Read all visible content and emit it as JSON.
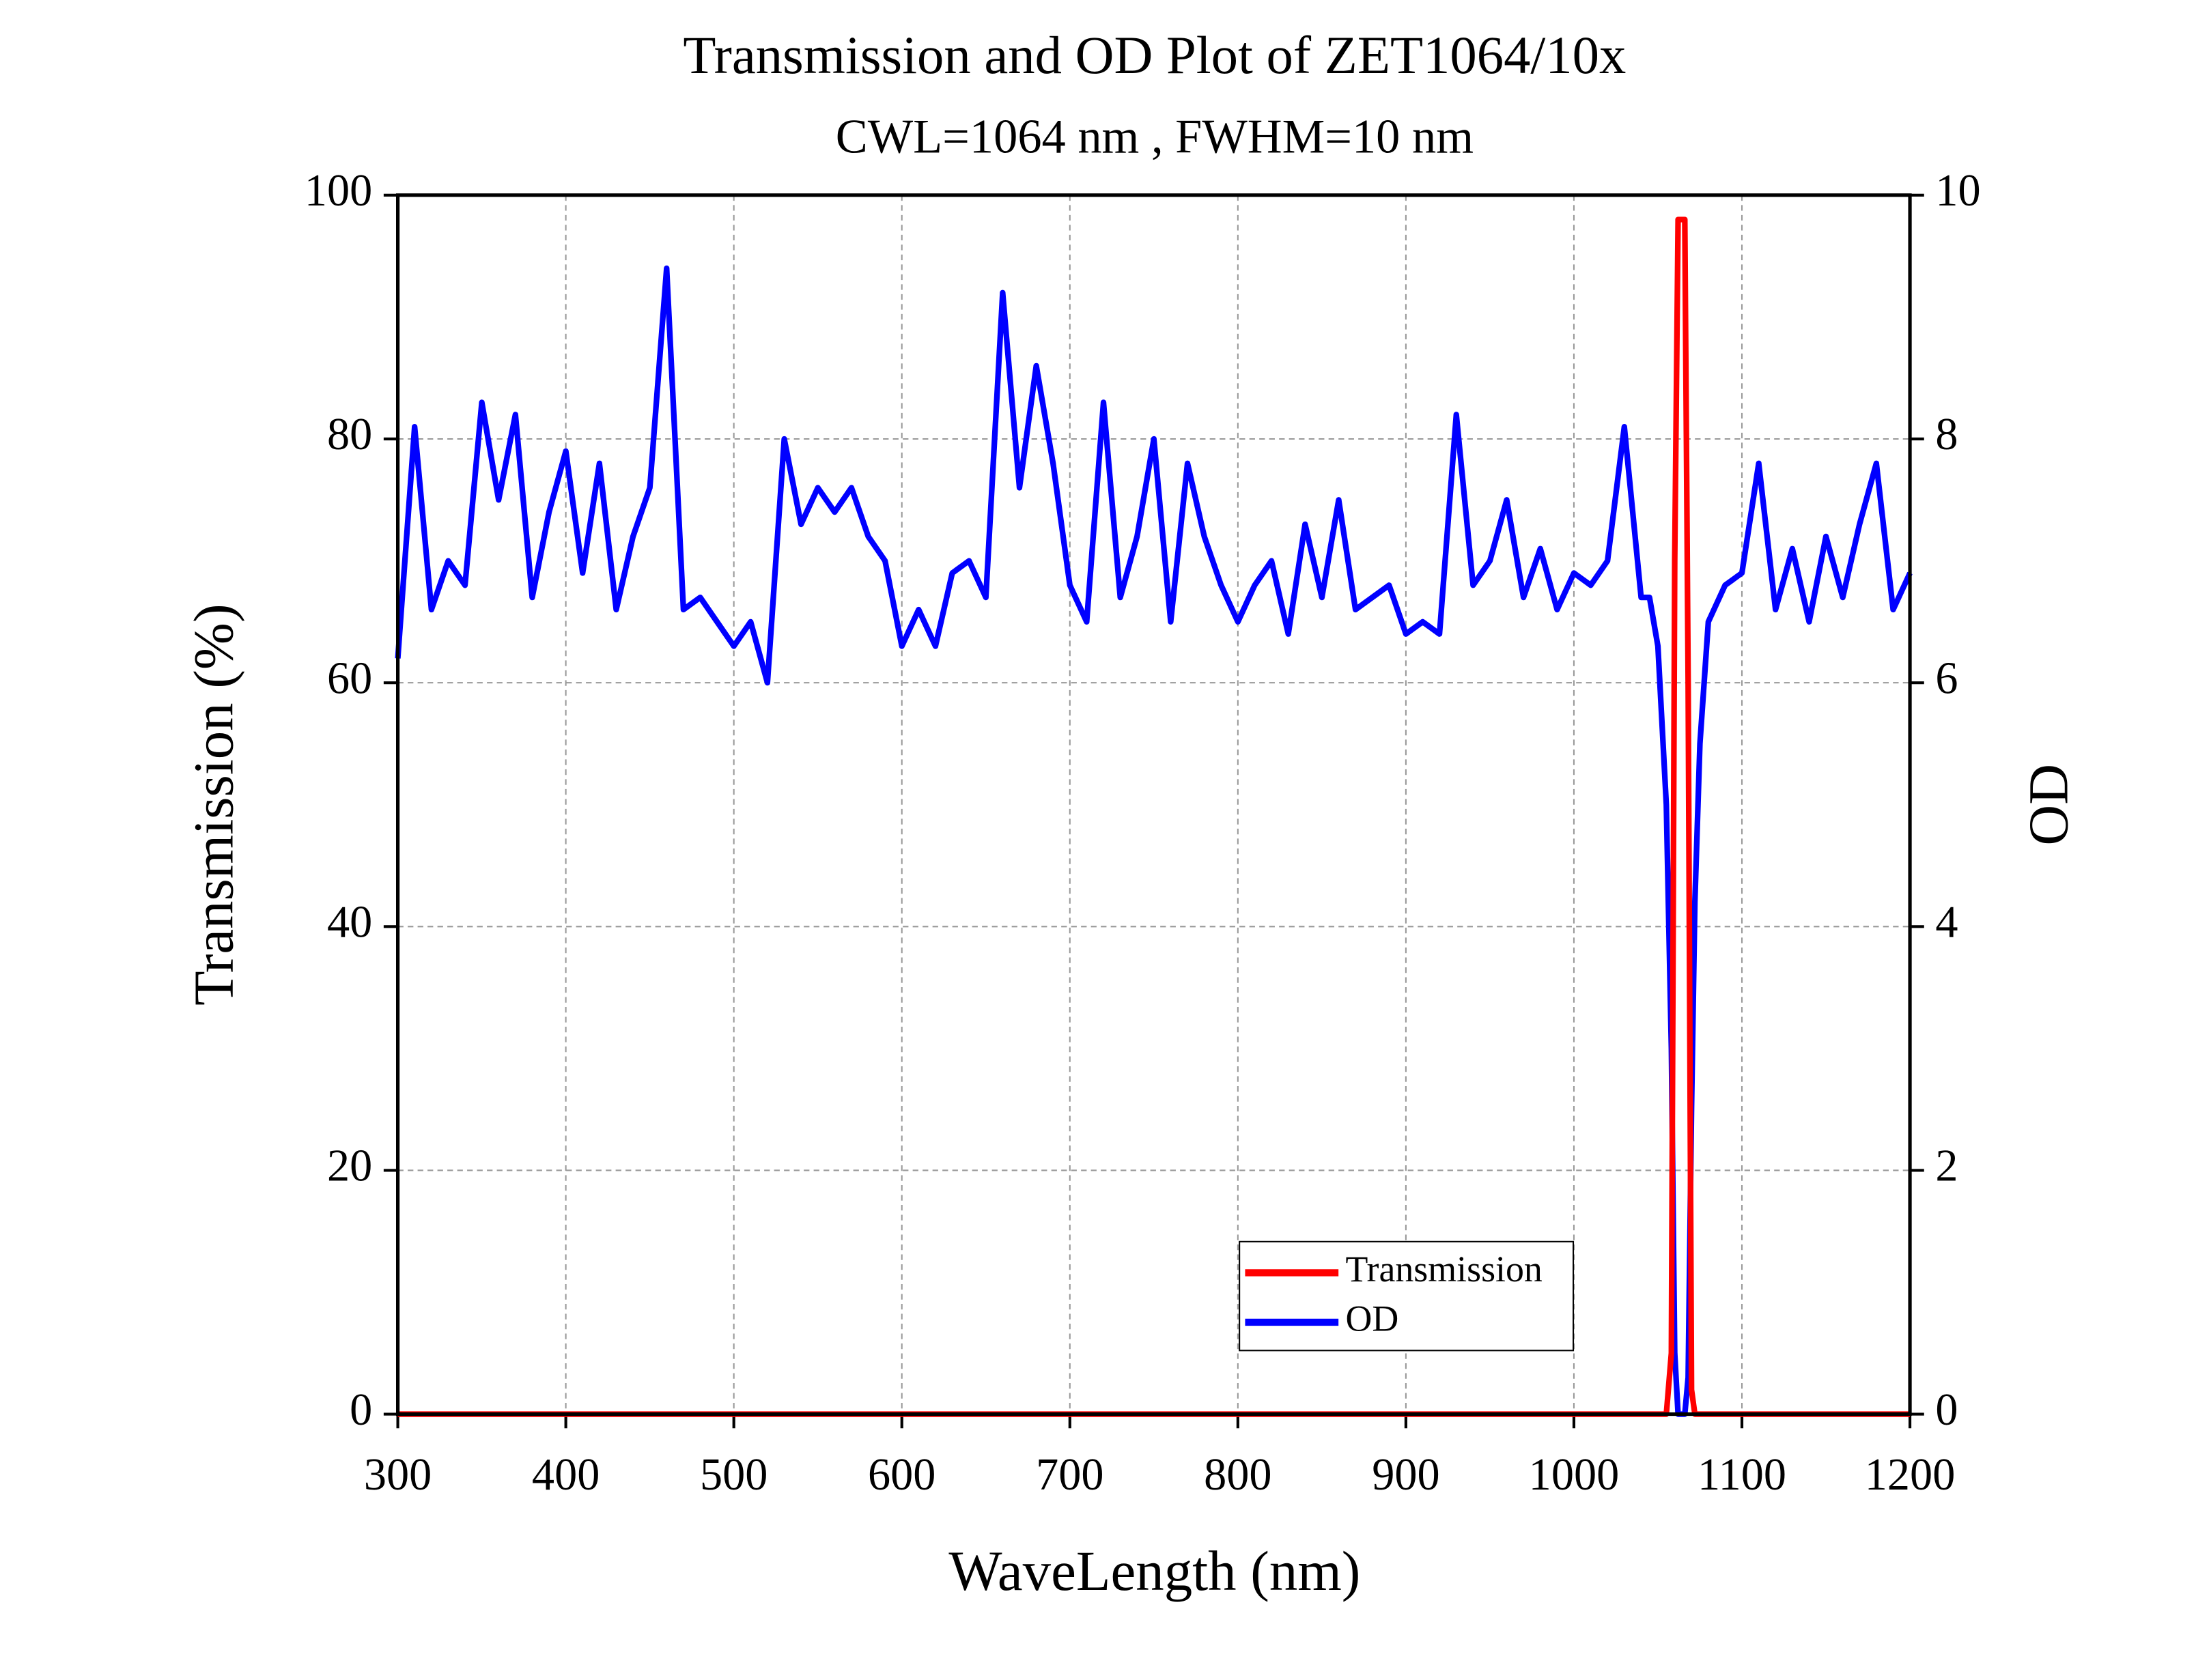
{
  "chart_data": {
    "type": "line",
    "title": "Transmission and OD Plot of ZET1064/10x",
    "subtitle": "CWL=1064 nm , FWHM=10 nm",
    "x_label": "WaveLength (nm)",
    "y_label": "Transmission (%)",
    "y2_label": "OD",
    "x": [
      300,
      310,
      320,
      330,
      340,
      350,
      360,
      370,
      380,
      390,
      400,
      410,
      420,
      430,
      440,
      450,
      460,
      470,
      480,
      490,
      500,
      510,
      520,
      530,
      540,
      550,
      560,
      570,
      580,
      590,
      600,
      610,
      620,
      630,
      640,
      650,
      660,
      670,
      680,
      690,
      700,
      710,
      720,
      730,
      740,
      750,
      760,
      770,
      780,
      790,
      800,
      810,
      820,
      830,
      840,
      850,
      860,
      870,
      880,
      890,
      900,
      910,
      920,
      930,
      940,
      950,
      960,
      970,
      980,
      990,
      1000,
      1010,
      1020,
      1030,
      1040,
      1045,
      1050,
      1055,
      1058,
      1060,
      1062,
      1064,
      1066,
      1068,
      1070,
      1072,
      1075,
      1080,
      1090,
      1100,
      1110,
      1120,
      1130,
      1140,
      1150,
      1160,
      1170,
      1180,
      1190,
      1200
    ],
    "series": [
      {
        "name": "Transmission",
        "color": "#ff0000",
        "values": [
          0,
          0,
          0,
          0,
          0,
          0,
          0,
          0,
          0,
          0,
          0,
          0,
          0,
          0,
          0,
          0,
          0,
          0,
          0,
          0,
          0,
          0,
          0,
          0,
          0,
          0,
          0,
          0,
          0,
          0,
          0,
          0,
          0,
          0,
          0,
          0,
          0,
          0,
          0,
          0,
          0,
          0,
          0,
          0,
          0,
          0,
          0,
          0,
          0,
          0,
          0,
          0,
          0,
          0,
          0,
          0,
          0,
          0,
          0,
          0,
          0,
          0,
          0,
          0,
          0,
          0,
          0,
          0,
          0,
          0,
          0,
          0,
          0,
          0,
          0,
          0,
          0,
          0,
          5,
          70,
          98,
          98,
          98,
          60,
          2,
          0,
          0,
          0,
          0,
          0,
          0,
          0,
          0,
          0,
          0,
          0,
          0,
          0,
          0,
          0
        ]
      },
      {
        "name": "OD",
        "color": "#0000ff",
        "axis": "y2",
        "values": [
          6.2,
          8.1,
          6.6,
          7.0,
          6.8,
          8.3,
          7.5,
          8.2,
          6.7,
          7.4,
          7.9,
          6.9,
          7.8,
          6.6,
          7.2,
          7.6,
          9.4,
          6.6,
          6.7,
          6.5,
          6.3,
          6.5,
          6.0,
          8.0,
          7.3,
          7.6,
          7.4,
          7.6,
          7.2,
          7.0,
          6.3,
          6.6,
          6.3,
          6.9,
          7.0,
          6.7,
          9.2,
          7.6,
          8.6,
          7.8,
          6.8,
          6.5,
          8.3,
          6.7,
          7.2,
          8.0,
          6.5,
          7.8,
          7.2,
          6.8,
          6.5,
          6.8,
          7.0,
          6.4,
          7.3,
          6.7,
          7.5,
          6.6,
          6.7,
          6.8,
          6.4,
          6.5,
          6.4,
          8.2,
          6.8,
          7.0,
          7.5,
          6.7,
          7.1,
          6.6,
          6.9,
          6.8,
          7.0,
          8.1,
          6.7,
          6.7,
          6.3,
          5.0,
          3.0,
          0.5,
          0,
          0,
          0,
          0.3,
          2.5,
          4.2,
          5.5,
          6.5,
          6.8,
          6.9,
          7.8,
          6.6,
          7.1,
          6.5,
          7.2,
          6.7,
          7.3,
          7.8,
          6.6,
          6.9
        ]
      }
    ],
    "xlim": [
      300,
      1200
    ],
    "xticks": [
      300,
      400,
      500,
      600,
      700,
      800,
      900,
      1000,
      1100,
      1200
    ],
    "ylim": [
      0,
      100
    ],
    "yticks": [
      0,
      20,
      40,
      60,
      80,
      100
    ],
    "y2lim": [
      0,
      10
    ],
    "y2ticks": [
      0,
      2,
      4,
      6,
      8,
      10
    ],
    "grid": true,
    "legend": "lower right"
  }
}
